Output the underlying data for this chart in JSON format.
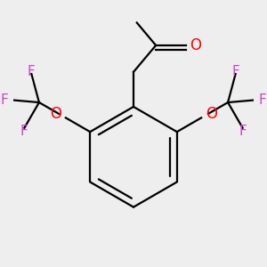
{
  "bg_color": "#eeeeee",
  "bond_color": "#000000",
  "oxygen_color": "#ff0000",
  "fluorine_color": "#cc44cc",
  "line_width": 1.6,
  "font_size_O": 12,
  "font_size_F": 11,
  "xlim": [
    -1.8,
    1.8
  ],
  "ylim": [
    -1.8,
    1.8
  ]
}
